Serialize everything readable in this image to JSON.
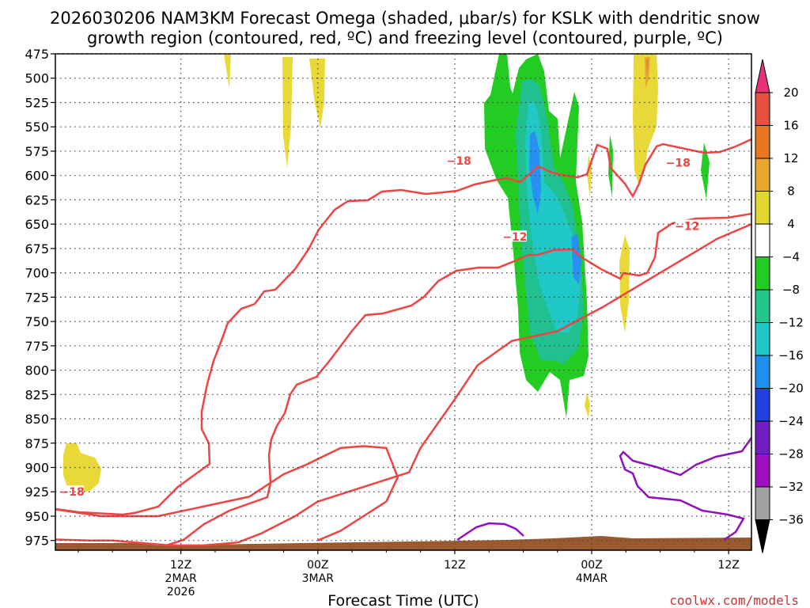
{
  "chart_data": {
    "type": "time-height",
    "title_line1": "2026030206 NAM3KM Forecast Omega (shaded, μbar/s) for KSLK with dendritic snow",
    "title_line2": "growth region (contoured, red, ºC) and freezing level (contoured, purple, ºC)",
    "ylabel_levels": [
      "475",
      "500",
      "525",
      "550",
      "575",
      "600",
      "625",
      "650",
      "675",
      "700",
      "725",
      "750",
      "775",
      "800",
      "825",
      "850",
      "875",
      "900",
      "925",
      "950",
      "975"
    ],
    "y_axis_range_mb": [
      475,
      985
    ],
    "x_axis_range_hours": [
      -5,
      56
    ],
    "x_ticks": [
      {
        "hour": 6,
        "label": "12Z",
        "sub1": "2MAR",
        "sub2": "2026"
      },
      {
        "hour": 18,
        "label": "00Z",
        "sub1": "3MAR",
        "sub2": ""
      },
      {
        "hour": 30,
        "label": "12Z",
        "sub1": "",
        "sub2": ""
      },
      {
        "hour": 42,
        "label": "00Z",
        "sub1": "4MAR",
        "sub2": ""
      },
      {
        "hour": 54,
        "label": "12Z",
        "sub1": "",
        "sub2": ""
      }
    ],
    "xlabel": "Forecast Time (UTC)",
    "credit": "coolwx.com/models",
    "colorbar": {
      "labels": [
        "20",
        "16",
        "12",
        "8",
        "4",
        "−4",
        "−8",
        "−12",
        "−16",
        "−20",
        "−24",
        "−28",
        "−32",
        "−36"
      ],
      "colors": [
        "#e83278",
        "#e85040",
        "#e87820",
        "#e8a830",
        "#e0d830",
        "#ffffff",
        "#22cc22",
        "#22c888",
        "#20c8c8",
        "#2090f0",
        "#2040e0",
        "#7020c0",
        "#a010c0",
        "#a0a0a0",
        "#000000"
      ]
    },
    "omega_colors": {
      "pos4": "#e8d838",
      "pos8": "#e8a830",
      "neg4": "#22cc22",
      "neg8": "#20c090",
      "neg12": "#20c8c8",
      "neg16": "#2890f0"
    },
    "terrain_color": "#9a5a30",
    "contour_colors": {
      "dgz": "#ee4444",
      "freezing": "#9010c0"
    },
    "contour_labels": [
      {
        "text": "−18",
        "hour": -3.6,
        "mb": 925
      },
      {
        "text": "−18",
        "hour": 30.3,
        "mb": 585
      },
      {
        "text": "−12",
        "hour": 35.2,
        "mb": 663
      },
      {
        "text": "−18",
        "hour": 49.5,
        "mb": 587
      },
      {
        "text": "−12",
        "hour": 50.3,
        "mb": 652
      }
    ],
    "dgz_contours": [
      [
        [
          -5,
          943
        ],
        [
          -1,
          950
        ],
        [
          4,
          950
        ],
        [
          12,
          930
        ],
        [
          15,
          907
        ],
        [
          17,
          897
        ],
        [
          20,
          880
        ],
        [
          22,
          878
        ],
        [
          24,
          880
        ],
        [
          25,
          910
        ],
        [
          24,
          935
        ],
        [
          22,
          950
        ],
        [
          20,
          965
        ],
        [
          18,
          975
        ]
      ],
      [
        [
          -5,
          974
        ],
        [
          -2,
          975
        ],
        [
          0,
          975
        ],
        [
          5,
          980
        ],
        [
          8,
          980
        ],
        [
          11,
          977
        ],
        [
          13,
          968
        ],
        [
          16,
          950
        ],
        [
          18,
          935
        ],
        [
          22,
          920
        ],
        [
          26,
          905
        ],
        [
          27,
          880
        ],
        [
          30,
          830
        ],
        [
          32,
          795
        ],
        [
          35,
          770
        ],
        [
          39,
          760
        ],
        [
          43,
          735
        ],
        [
          48,
          700
        ],
        [
          53,
          665
        ],
        [
          56,
          650
        ]
      ]
    ]
  }
}
